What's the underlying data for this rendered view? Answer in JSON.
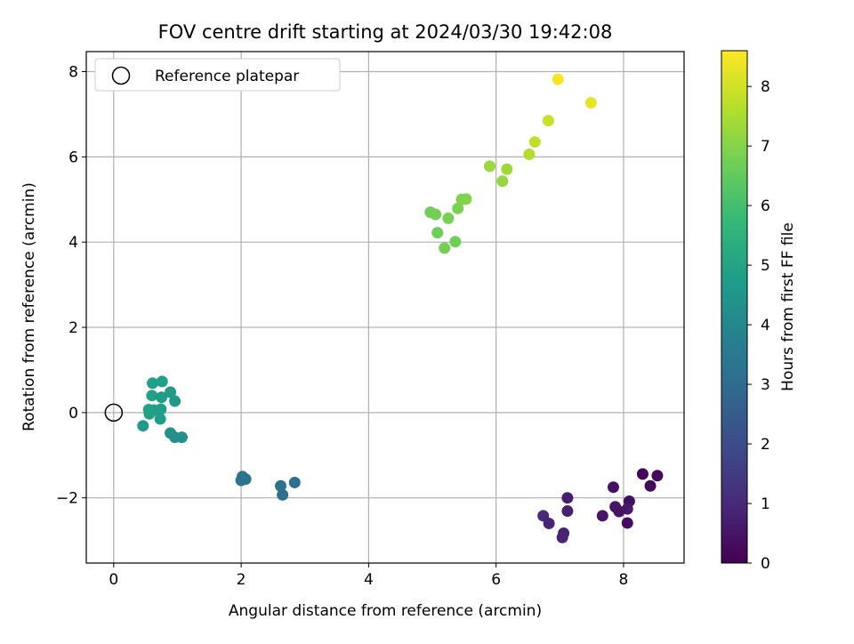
{
  "chart_data": {
    "type": "scatter",
    "title": "FOV centre drift starting at 2024/03/30 19:42:08",
    "xlabel": "Angular distance from reference (arcmin)",
    "ylabel": "Rotation from reference (arcmin)",
    "xlim": [
      -0.43,
      8.95
    ],
    "ylim": [
      -3.53,
      8.47
    ],
    "xticks": [
      0,
      2,
      4,
      6,
      8
    ],
    "xtick_labels": [
      "0",
      "2",
      "4",
      "6",
      "8"
    ],
    "yticks": [
      -2,
      0,
      2,
      4,
      6,
      8
    ],
    "ytick_labels": [
      "−2",
      "0",
      "2",
      "4",
      "6",
      "8"
    ],
    "grid": true,
    "legend": {
      "position": "top-left",
      "entries": [
        "Reference platepar"
      ]
    },
    "reference_point": {
      "label": "Reference platepar",
      "x": 0,
      "y": 0,
      "marker": "hollow-circle"
    },
    "colorbar": {
      "label": "Hours from first FF file",
      "range": [
        0,
        8.6
      ],
      "ticks": [
        0,
        1,
        2,
        3,
        4,
        5,
        6,
        7,
        8
      ],
      "tick_labels": [
        "0",
        "1",
        "2",
        "3",
        "4",
        "5",
        "6",
        "7",
        "8"
      ],
      "colormap": "viridis",
      "colors": [
        "#440154",
        "#482878",
        "#3e4989",
        "#31688e",
        "#26828e",
        "#1f9e89",
        "#35b779",
        "#6ece58",
        "#b5de2b",
        "#fde725"
      ]
    },
    "series": [
      {
        "points": [
          {
            "x": 8.3,
            "y": -1.44,
            "c": 0.1
          },
          {
            "x": 8.53,
            "y": -1.48,
            "c": 0.15
          },
          {
            "x": 8.42,
            "y": -1.72,
            "c": 0.2
          },
          {
            "x": 7.84,
            "y": -1.75,
            "c": 0.4
          },
          {
            "x": 8.09,
            "y": -2.08,
            "c": 0.35
          },
          {
            "x": 7.87,
            "y": -2.21,
            "c": 0.5
          },
          {
            "x": 8.06,
            "y": -2.26,
            "c": 0.6
          },
          {
            "x": 7.93,
            "y": -2.32,
            "c": 0.45
          },
          {
            "x": 7.67,
            "y": -2.42,
            "c": 0.55
          },
          {
            "x": 8.06,
            "y": -2.59,
            "c": 0.3
          },
          {
            "x": 7.12,
            "y": -2.0,
            "c": 0.7
          },
          {
            "x": 7.12,
            "y": -2.31,
            "c": 0.75
          },
          {
            "x": 6.74,
            "y": -2.42,
            "c": 1.0
          },
          {
            "x": 6.83,
            "y": -2.6,
            "c": 0.9
          },
          {
            "x": 7.06,
            "y": -2.83,
            "c": 0.8
          },
          {
            "x": 7.04,
            "y": -2.93,
            "c": 0.85
          },
          {
            "x": 2.02,
            "y": -1.5,
            "c": 3.4
          },
          {
            "x": 2.07,
            "y": -1.56,
            "c": 3.3
          },
          {
            "x": 2.0,
            "y": -1.59,
            "c": 3.35
          },
          {
            "x": 2.84,
            "y": -1.64,
            "c": 3.1
          },
          {
            "x": 2.62,
            "y": -1.72,
            "c": 3.2
          },
          {
            "x": 2.65,
            "y": -1.93,
            "c": 3.15
          },
          {
            "x": 0.61,
            "y": 0.69,
            "c": 4.8
          },
          {
            "x": 0.76,
            "y": 0.73,
            "c": 4.85
          },
          {
            "x": 0.89,
            "y": 0.48,
            "c": 4.7
          },
          {
            "x": 0.6,
            "y": 0.4,
            "c": 4.9
          },
          {
            "x": 0.75,
            "y": 0.36,
            "c": 4.75
          },
          {
            "x": 0.96,
            "y": 0.27,
            "c": 4.6
          },
          {
            "x": 0.55,
            "y": 0.07,
            "c": 4.95
          },
          {
            "x": 0.63,
            "y": 0.06,
            "c": 4.85
          },
          {
            "x": 0.74,
            "y": 0.08,
            "c": 4.8
          },
          {
            "x": 0.56,
            "y": -0.03,
            "c": 4.9
          },
          {
            "x": 0.73,
            "y": -0.15,
            "c": 4.7
          },
          {
            "x": 0.46,
            "y": -0.31,
            "c": 4.65
          },
          {
            "x": 0.89,
            "y": -0.48,
            "c": 4.4
          },
          {
            "x": 0.96,
            "y": -0.58,
            "c": 4.3
          },
          {
            "x": 1.07,
            "y": -0.58,
            "c": 4.35
          },
          {
            "x": 4.97,
            "y": 4.7,
            "c": 6.7
          },
          {
            "x": 5.05,
            "y": 4.65,
            "c": 6.75
          },
          {
            "x": 5.25,
            "y": 4.56,
            "c": 6.8
          },
          {
            "x": 5.08,
            "y": 4.22,
            "c": 6.65
          },
          {
            "x": 5.36,
            "y": 4.01,
            "c": 6.7
          },
          {
            "x": 5.19,
            "y": 3.86,
            "c": 6.75
          },
          {
            "x": 5.4,
            "y": 4.79,
            "c": 6.85
          },
          {
            "x": 5.46,
            "y": 5.0,
            "c": 6.9
          },
          {
            "x": 5.53,
            "y": 5.01,
            "c": 6.95
          },
          {
            "x": 5.9,
            "y": 5.78,
            "c": 7.3
          },
          {
            "x": 6.17,
            "y": 5.71,
            "c": 7.35
          },
          {
            "x": 6.1,
            "y": 5.43,
            "c": 7.2
          },
          {
            "x": 6.52,
            "y": 6.06,
            "c": 7.6
          },
          {
            "x": 6.61,
            "y": 6.35,
            "c": 7.8
          },
          {
            "x": 6.82,
            "y": 6.85,
            "c": 7.9
          },
          {
            "x": 6.97,
            "y": 7.82,
            "c": 8.5
          },
          {
            "x": 7.49,
            "y": 7.27,
            "c": 8.3
          }
        ]
      }
    ]
  }
}
